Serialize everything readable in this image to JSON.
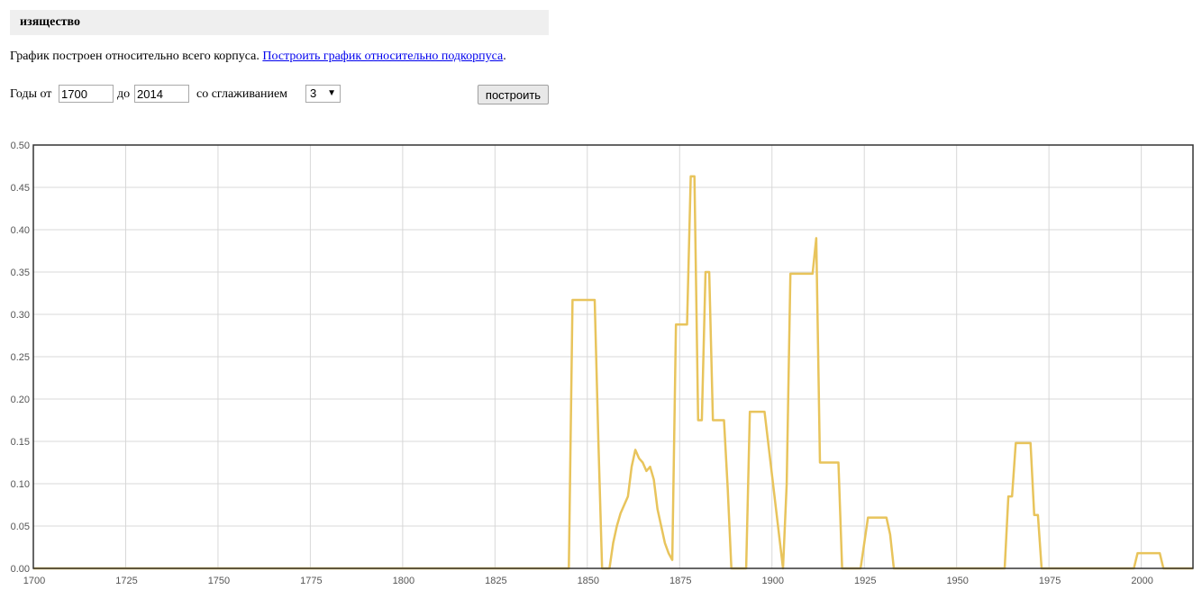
{
  "header": {
    "word": "изящество"
  },
  "corpus_line": {
    "text": "График построен относительно всего корпуса. ",
    "link": "Построить график относительно подкорпуса",
    "end": "."
  },
  "controls": {
    "years_from_label": "Годы от",
    "year_from": "1700",
    "to_label": "до",
    "year_to": "2014",
    "smoothing_label": "со сглаживанием",
    "smoothing_value": "3",
    "build_button": "построить"
  },
  "colors": {
    "line": "#e8c45c",
    "grid": "#d8d8d8",
    "frame": "#333333"
  },
  "chart_data": {
    "type": "line",
    "xlim": [
      1700,
      2014
    ],
    "ylim": [
      0,
      0.5
    ],
    "grid": true,
    "xticks": [
      1700,
      1725,
      1750,
      1775,
      1800,
      1825,
      1850,
      1875,
      1900,
      1925,
      1950,
      1975,
      2000
    ],
    "xtick_labels": [
      "1700",
      "1725",
      "1750",
      "1775",
      "1800",
      "1825",
      "1850",
      "1875",
      "1900",
      "1925",
      "1950",
      "1975",
      "2000"
    ],
    "yticks": [
      0,
      0.05,
      0.1,
      0.15,
      0.2,
      0.25,
      0.3,
      0.35,
      0.4,
      0.45,
      0.5
    ],
    "ytick_labels": [
      "0.00",
      "0.05",
      "0.10",
      "0.15",
      "0.20",
      "0.25",
      "0.30",
      "0.35",
      "0.40",
      "0.45",
      "0.50"
    ],
    "series": [
      {
        "x": [
          1700,
          1845,
          1846,
          1852,
          1853,
          1854,
          1856,
          1857,
          1858,
          1859,
          1860,
          1861,
          1862,
          1863,
          1864,
          1865,
          1866,
          1867,
          1868,
          1869,
          1870,
          1871,
          1872,
          1873,
          1874,
          1875,
          1876,
          1877,
          1878,
          1879,
          1880,
          1881,
          1882,
          1883,
          1884,
          1885,
          1886,
          1887,
          1888,
          1889,
          1890,
          1891,
          1892,
          1893,
          1894,
          1895,
          1896,
          1897,
          1898,
          1903,
          1904,
          1905,
          1906,
          1911,
          1912,
          1913,
          1918,
          1919,
          1924,
          1925,
          1926,
          1931,
          1932,
          1933,
          1934,
          1963,
          1964,
          1965,
          1966,
          1970,
          1971,
          1972,
          1973,
          1998,
          1999,
          2005,
          2006,
          2014
        ],
        "y": [
          0,
          0,
          0.317,
          0.317,
          0.15,
          0,
          0,
          0.03,
          0.05,
          0.065,
          0.075,
          0.085,
          0.12,
          0.14,
          0.13,
          0.125,
          0.115,
          0.12,
          0.105,
          0.07,
          0.05,
          0.03,
          0.018,
          0.01,
          0.288,
          0.288,
          0.288,
          0.288,
          0.463,
          0.463,
          0.175,
          0.175,
          0.35,
          0.35,
          0.175,
          0.175,
          0.175,
          0.175,
          0.095,
          0,
          0,
          0,
          0,
          0,
          0.185,
          0.185,
          0.185,
          0.185,
          0.185,
          0,
          0.1,
          0.348,
          0.348,
          0.348,
          0.39,
          0.125,
          0.125,
          0,
          0,
          0.03,
          0.06,
          0.06,
          0.04,
          0,
          0,
          0,
          0.085,
          0.085,
          0.148,
          0.148,
          0.063,
          0.063,
          0,
          0,
          0.018,
          0.018,
          0,
          0
        ]
      }
    ]
  }
}
